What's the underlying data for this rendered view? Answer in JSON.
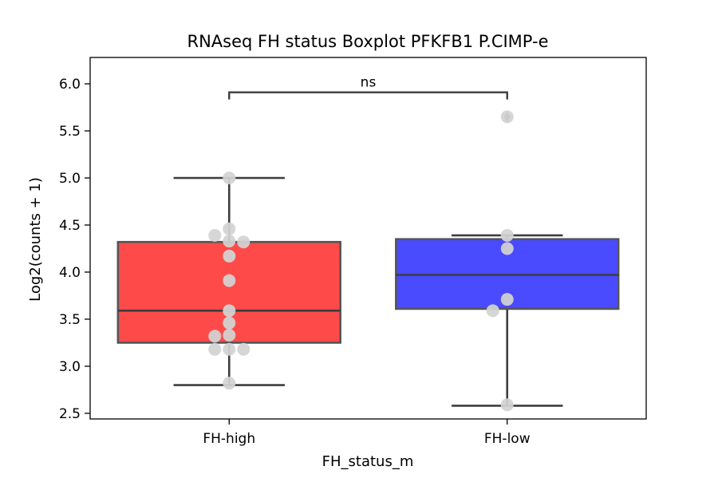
{
  "chart_data": {
    "type": "box",
    "title": "RNAseq FH status Boxplot PFKFB1 P.CIMP-e",
    "xlabel": "FH_status_m",
    "ylabel": "Log2(counts + 1)",
    "ylim": [
      2.44,
      6.28
    ],
    "yticks": [
      2.5,
      3.0,
      3.5,
      4.0,
      4.5,
      5.0,
      5.5,
      6.0
    ],
    "ytick_labels": [
      "2.5",
      "3.0",
      "3.5",
      "4.0",
      "4.5",
      "5.0",
      "5.5",
      "6.0"
    ],
    "categories": [
      "FH-high",
      "FH-low"
    ],
    "colors": [
      "#ff4a4a",
      "#4a4aff"
    ],
    "box_stats": [
      {
        "category": "FH-high",
        "whisker_low": 2.8,
        "q1": 3.25,
        "median": 3.59,
        "q3": 4.32,
        "whisker_high": 5.0,
        "outliers": []
      },
      {
        "category": "FH-low",
        "whisker_low": 2.58,
        "q1": 3.61,
        "median": 3.97,
        "q3": 4.35,
        "whisker_high": 4.39,
        "outliers": [
          5.65
        ]
      }
    ],
    "points": [
      {
        "category": "FH-high",
        "values": [
          5.0,
          4.46,
          4.39,
          4.33,
          4.32,
          4.17,
          3.91,
          3.59,
          3.46,
          3.33,
          3.32,
          3.18,
          3.18,
          3.18,
          2.82
        ]
      },
      {
        "category": "FH-low",
        "values": [
          5.65,
          4.39,
          4.25,
          3.71,
          3.59,
          2.59
        ]
      }
    ],
    "annotations": [
      {
        "text": "ns",
        "between": [
          "FH-high",
          "FH-low"
        ],
        "y": 5.91
      }
    ],
    "grid": false,
    "legend": "none"
  }
}
